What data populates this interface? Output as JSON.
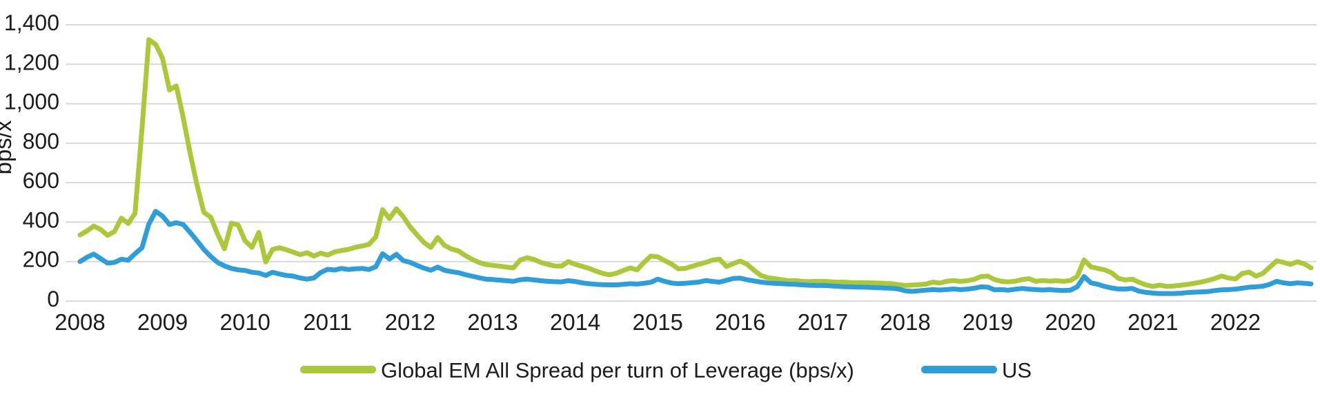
{
  "page": {
    "background": "#ffffff"
  },
  "chart_data": {
    "type": "line",
    "title": "",
    "ylabel": "bps/x",
    "grid": "horizontal",
    "legend_position": "bottom-center",
    "y_axis": {
      "min": 0,
      "max": 1400,
      "ticks": [
        0,
        200,
        400,
        600,
        800,
        1000,
        1200,
        1400
      ],
      "tick_labels": [
        "0",
        "200",
        "400",
        "600",
        "800",
        "1,000",
        "1,200",
        "1,400"
      ]
    },
    "x_axis": {
      "tick_labels": [
        "2008",
        "2009",
        "2010",
        "2011",
        "2012",
        "2013",
        "2014",
        "2015",
        "2016",
        "2017",
        "2018",
        "2019",
        "2020",
        "2021",
        "2022"
      ],
      "start": "2008",
      "end": "2022",
      "points_per_year": 12
    },
    "series": [
      {
        "id": "global-em",
        "name": "Global EM All Spread per turn of Leverage (bps/x)",
        "color": "#aac838",
        "values": [
          335,
          355,
          380,
          362,
          333,
          352,
          420,
          393,
          445,
          870,
          1325,
          1300,
          1230,
          1070,
          1090,
          930,
          750,
          590,
          450,
          425,
          340,
          265,
          395,
          385,
          305,
          272,
          348,
          198,
          262,
          270,
          260,
          248,
          235,
          245,
          228,
          243,
          233,
          249,
          256,
          262,
          272,
          279,
          287,
          325,
          463,
          418,
          468,
          428,
          376,
          335,
          297,
          272,
          322,
          282,
          264,
          254,
          231,
          212,
          196,
          185,
          181,
          177,
          172,
          168,
          208,
          220,
          211,
          196,
          186,
          178,
          177,
          200,
          186,
          176,
          166,
          152,
          140,
          133,
          141,
          155,
          168,
          158,
          196,
          228,
          224,
          205,
          188,
          163,
          166,
          176,
          186,
          196,
          208,
          212,
          175,
          190,
          203,
          186,
          156,
          130,
          118,
          114,
          108,
          103,
          104,
          100,
          98,
          100,
          100,
          98,
          96,
          96,
          94,
          93,
          93,
          92,
          91,
          90,
          88,
          83,
          79,
          81,
          83,
          86,
          96,
          91,
          100,
          104,
          100,
          103,
          110,
          124,
          126,
          109,
          100,
          97,
          101,
          109,
          113,
          100,
          104,
          101,
          103,
          100,
          104,
          125,
          208,
          173,
          165,
          158,
          143,
          115,
          107,
          111,
          95,
          82,
          74,
          81,
          74,
          76,
          80,
          84,
          90,
          96,
          104,
          114,
          127,
          117,
          112,
          140,
          147,
          126,
          140,
          172,
          204,
          196,
          186,
          199,
          189,
          168
        ]
      },
      {
        "id": "us",
        "name": "US",
        "color": "#2d9ed9",
        "values": [
          200,
          222,
          238,
          215,
          192,
          196,
          212,
          207,
          240,
          270,
          390,
          455,
          430,
          388,
          397,
          388,
          348,
          306,
          262,
          226,
          196,
          178,
          165,
          158,
          155,
          146,
          142,
          130,
          146,
          137,
          130,
          126,
          117,
          111,
          117,
          145,
          161,
          157,
          165,
          160,
          163,
          165,
          160,
          174,
          240,
          213,
          237,
          205,
          196,
          181,
          167,
          156,
          172,
          156,
          149,
          144,
          134,
          126,
          118,
          111,
          109,
          106,
          103,
          100,
          108,
          111,
          107,
          103,
          100,
          98,
          97,
          103,
          99,
          92,
          88,
          85,
          83,
          82,
          82,
          85,
          88,
          86,
          90,
          95,
          111,
          100,
          91,
          88,
          90,
          93,
          96,
          104,
          99,
          96,
          105,
          114,
          116,
          108,
          102,
          96,
          92,
          90,
          88,
          86,
          85,
          82,
          80,
          79,
          79,
          77,
          75,
          73,
          72,
          71,
          70,
          69,
          68,
          66,
          65,
          61,
          52,
          49,
          52,
          55,
          58,
          56,
          58,
          61,
          58,
          60,
          65,
          72,
          70,
          57,
          58,
          55,
          60,
          64,
          60,
          58,
          56,
          58,
          55,
          53,
          55,
          72,
          124,
          92,
          85,
          74,
          66,
          61,
          61,
          64,
          50,
          44,
          40,
          38,
          38,
          38,
          39,
          43,
          45,
          46,
          48,
          53,
          57,
          58,
          60,
          65,
          70,
          72,
          75,
          85,
          100,
          92,
          88,
          92,
          90,
          87
        ]
      }
    ]
  }
}
